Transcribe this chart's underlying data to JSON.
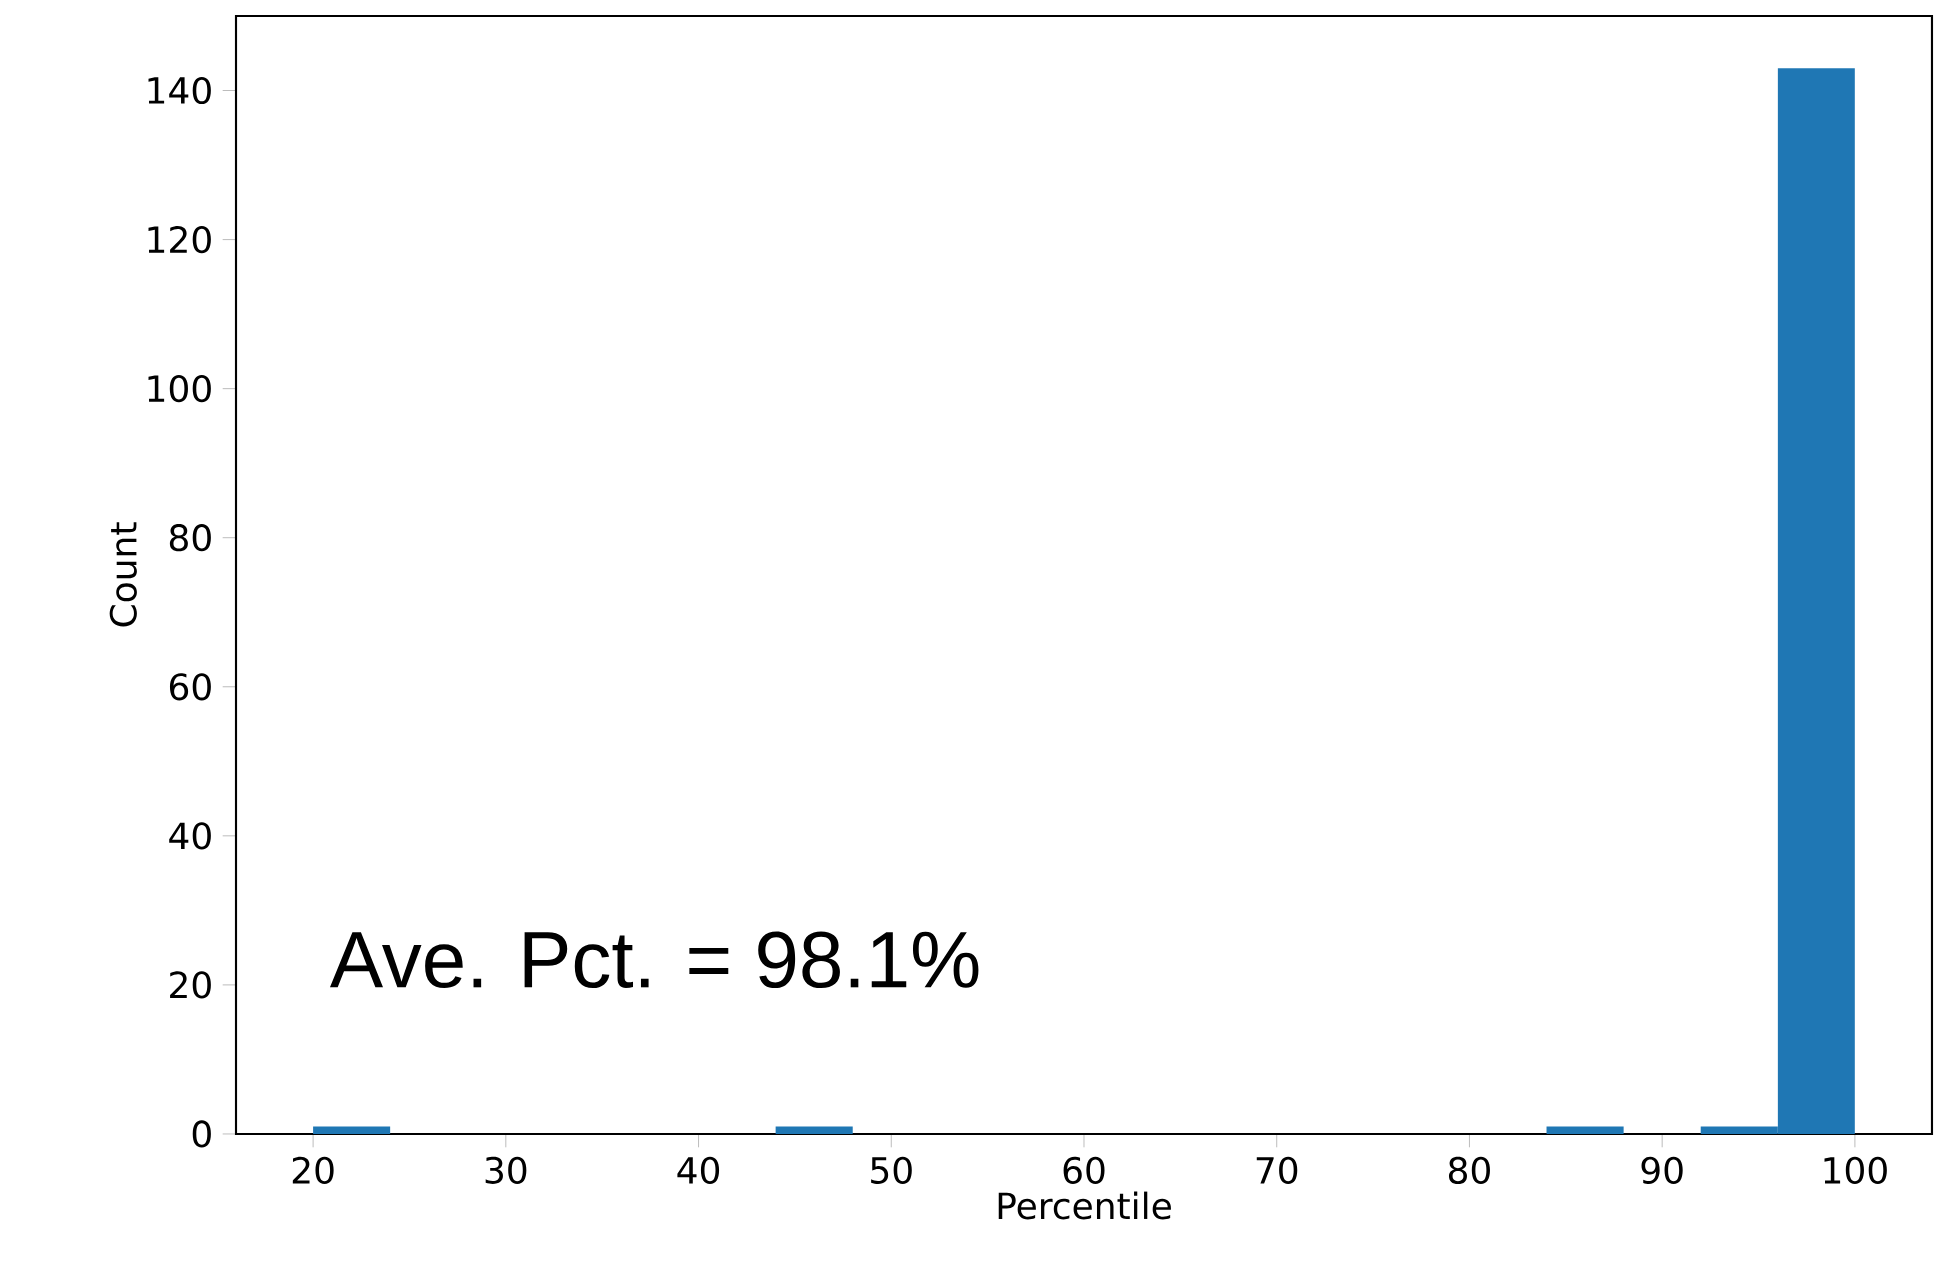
{
  "chart_data": {
    "type": "histogram",
    "xlabel": "Percentile",
    "ylabel": "Count",
    "bins": [
      20,
      24,
      28,
      32,
      36,
      40,
      44,
      48,
      52,
      56,
      60,
      64,
      68,
      72,
      76,
      80,
      84,
      88,
      92,
      96,
      100
    ],
    "values": [
      1,
      0,
      0,
      0,
      0,
      0,
      1,
      0,
      0,
      0,
      0,
      0,
      0,
      0,
      0,
      0,
      1,
      0,
      1,
      143
    ],
    "color": "#1f77b4",
    "xlim": [
      16,
      104
    ],
    "ylim": [
      0,
      150
    ],
    "xticks": [
      20,
      30,
      40,
      50,
      60,
      70,
      80,
      90,
      100
    ],
    "yticks": [
      0,
      20,
      40,
      60,
      80,
      100,
      120,
      140
    ],
    "grid": false,
    "annotations": [
      "Ave. Pct. = 98.1%"
    ]
  }
}
